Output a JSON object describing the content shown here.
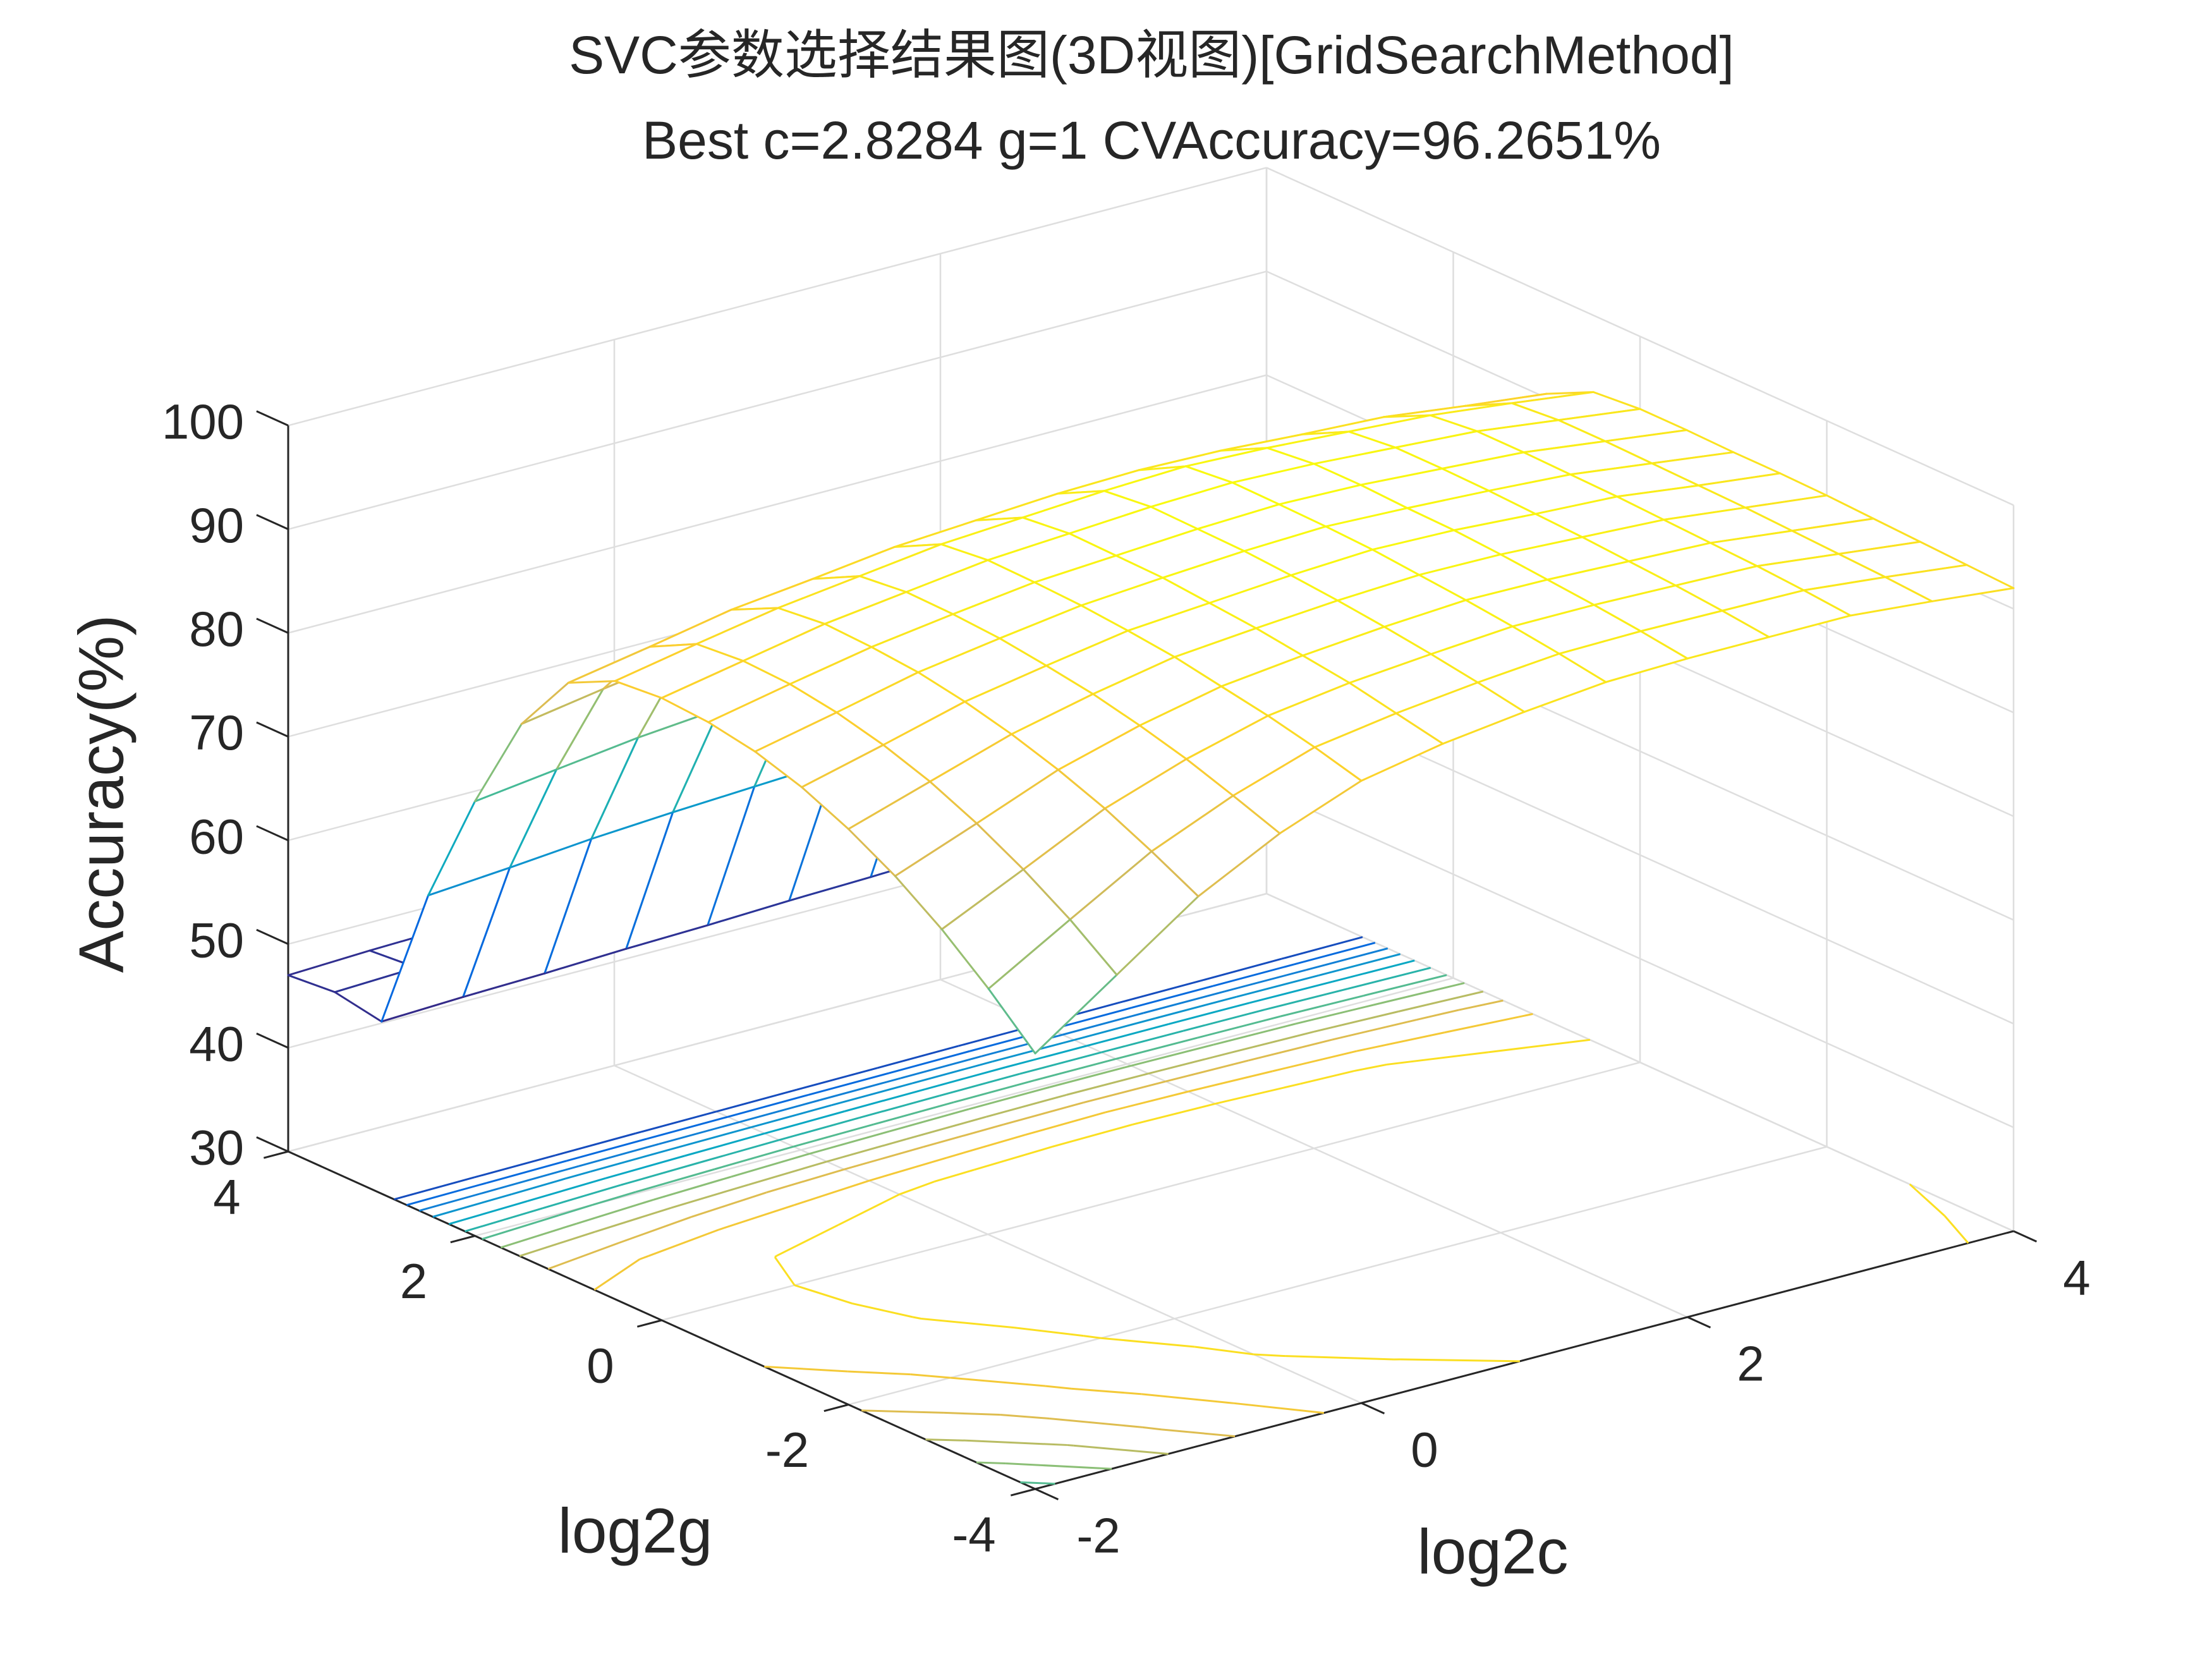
{
  "chart_data": {
    "type": "mesh-contour",
    "title": "SVC参数选择结果图(3D视图)[GridSearchMethod]",
    "subtitle": "Best c=2.8284 g=1 CVAccuracy=96.2651%",
    "x_label": "log2c",
    "y_label": "log2g",
    "z_label": "Accuracy(%)",
    "x": [
      -2,
      -1.5,
      -1,
      -0.5,
      0,
      0.5,
      1,
      1.5,
      2,
      2.5,
      3,
      3.5,
      4
    ],
    "y": [
      -4,
      -3.5,
      -3,
      -2.5,
      -2,
      -1.5,
      -1,
      -0.5,
      0,
      0.5,
      1,
      1.5,
      2,
      2.5,
      3,
      3.5,
      4
    ],
    "z": [
      [
        72,
        77.5,
        83,
        87,
        90,
        91.5,
        92.5,
        93.3,
        93.5,
        93.5,
        93.5,
        92.8,
        92
      ],
      [
        76.2,
        80.8,
        85.3,
        88.6,
        91.2,
        92.4,
        93.3,
        94,
        94.1,
        94,
        93.9,
        93.1,
        92.2
      ],
      [
        79.9,
        83.6,
        87.4,
        90.1,
        92.2,
        93.3,
        94,
        94.6,
        94.6,
        94.4,
        94.2,
        93.3,
        92.4
      ],
      [
        83,
        86,
        89.1,
        91.3,
        93,
        93.9,
        94.6,
        95.1,
        95,
        94.7,
        94.4,
        93.5,
        92.6
      ],
      [
        85.5,
        88,
        90.5,
        92.3,
        93.8,
        94.5,
        95.1,
        95.5,
        95.4,
        95,
        94.6,
        93.7,
        92.8
      ],
      [
        87.5,
        89.5,
        91.6,
        93,
        94.3,
        94.9,
        95.5,
        95.9,
        95.7,
        95.2,
        94.8,
        93.8,
        92.9
      ],
      [
        88.9,
        90.6,
        92.4,
        93.6,
        94.7,
        95.3,
        95.8,
        96.1,
        95.8,
        95.4,
        94.9,
        93.9,
        92.9
      ],
      [
        89.7,
        91.3,
        92.8,
        93.9,
        94.9,
        95.4,
        95.9,
        96.2,
        96,
        95.5,
        95,
        94,
        93
      ],
      [
        90,
        91.5,
        93,
        94,
        95,
        95.5,
        96,
        96.2651,
        96,
        95.5,
        95,
        94,
        93
      ],
      [
        89.6,
        91.1,
        92.5,
        93.5,
        94.5,
        95,
        95.5,
        95.8,
        95.5,
        95,
        94.5,
        93.6,
        92.6
      ],
      [
        87.4,
        88.8,
        90.3,
        91.2,
        92.2,
        92.7,
        93.2,
        93.4,
        93.2,
        92.7,
        92.3,
        91.3,
        90.4
      ],
      [
        81.4,
        82.7,
        83.9,
        84.8,
        85.6,
        86.1,
        86.5,
        86.8,
        86.6,
        86.3,
        85.9,
        85.2,
        84.4
      ],
      [
        71.9,
        72.9,
        73.9,
        74.6,
        75.3,
        75.7,
        76.1,
        76.3,
        76.3,
        76.1,
        75.9,
        75.4,
        74.9
      ],
      [
        60.8,
        61.4,
        62.1,
        62.6,
        63,
        63.4,
        63.7,
        64,
        64,
        64.1,
        64.1,
        63.9,
        63.8
      ],
      [
        46.6,
        46.9,
        47.1,
        47.4,
        47.6,
        47.9,
        48.1,
        48.4,
        48.6,
        48.9,
        49.1,
        49.4,
        49.6
      ],
      [
        47.4,
        47.7,
        47.9,
        48.2,
        48.4,
        48.7,
        48.9,
        49.2,
        49.4,
        49.7,
        49.9,
        50.2,
        50.4
      ],
      [
        47,
        47.3,
        47.5,
        47.8,
        48,
        48.3,
        48.5,
        48.8,
        49,
        49.3,
        49.5,
        49.8,
        50
      ]
    ],
    "xlim": [
      -2,
      4
    ],
    "ylim": [
      -4,
      4
    ],
    "zlim": [
      30,
      100
    ],
    "xticks": [
      -2,
      0,
      2,
      4
    ],
    "yticks": [
      -4,
      -2,
      0,
      2,
      4
    ],
    "zticks": [
      30,
      40,
      50,
      60,
      70,
      80,
      90,
      100
    ],
    "grid": true,
    "colormap": "parula"
  }
}
